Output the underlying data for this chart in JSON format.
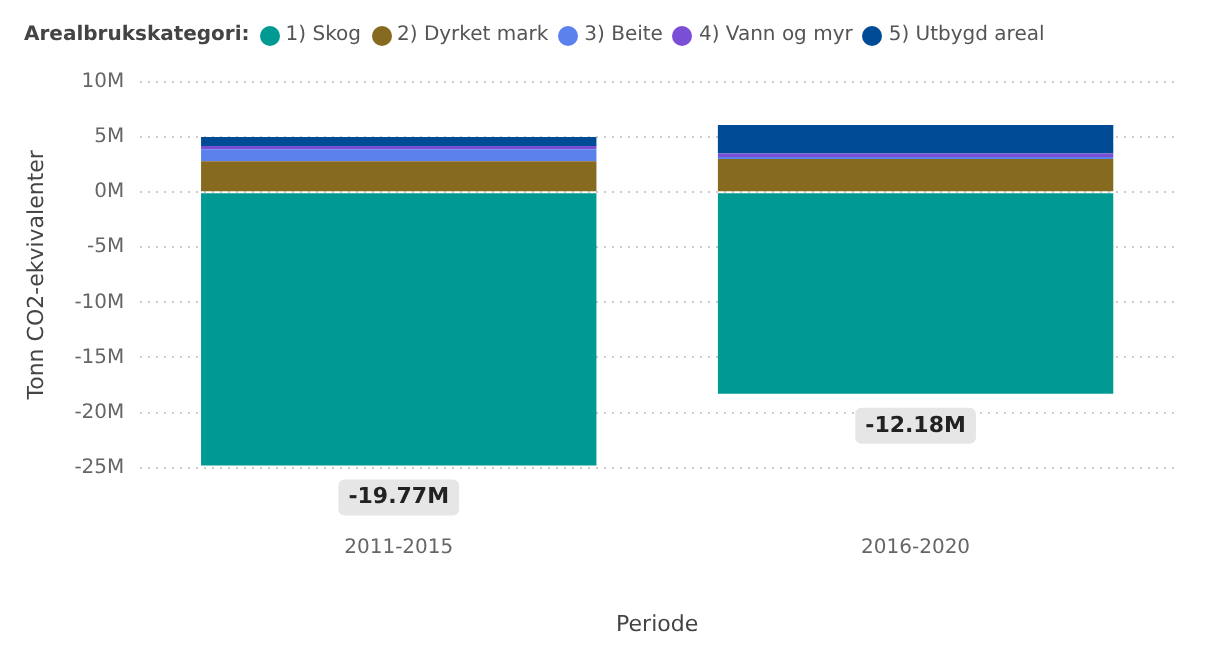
{
  "chart_data": {
    "type": "bar",
    "stacked": true,
    "legend_title": "Arealbrukskategori:",
    "legend": "top left",
    "xlabel": "Periode",
    "ylabel": "Tonn CO2-ekvivalenter",
    "categories": [
      "2011-2015",
      "2016-2020"
    ],
    "series": [
      {
        "name": "1) Skog",
        "color": "#009a93",
        "values": [
          -24800000,
          -18300000
        ]
      },
      {
        "name": "2) Dyrket mark",
        "color": "#866a1f",
        "values": [
          2800000,
          3000000
        ]
      },
      {
        "name": "3) Beite",
        "color": "#5b82ec",
        "values": [
          1100000,
          200000
        ]
      },
      {
        "name": "4) Vann og myr",
        "color": "#7a4fd6",
        "values": [
          300000,
          300000
        ]
      },
      {
        "name": "5) Utbygd areal",
        "color": "#004b96",
        "values": [
          800000,
          2600000
        ]
      }
    ],
    "totals": [
      "-19.77M",
      "-12.18M"
    ],
    "ylim": [
      -25000000,
      10000000
    ],
    "yticks": [
      {
        "value": 10000000,
        "label": "10M"
      },
      {
        "value": 5000000,
        "label": "5M"
      },
      {
        "value": 0,
        "label": "0M"
      },
      {
        "value": -5000000,
        "label": "-5M"
      },
      {
        "value": -10000000,
        "label": "-10M"
      },
      {
        "value": -15000000,
        "label": "-15M"
      },
      {
        "value": -20000000,
        "label": "-20M"
      },
      {
        "value": -25000000,
        "label": "-25M"
      }
    ],
    "grid": "y"
  }
}
